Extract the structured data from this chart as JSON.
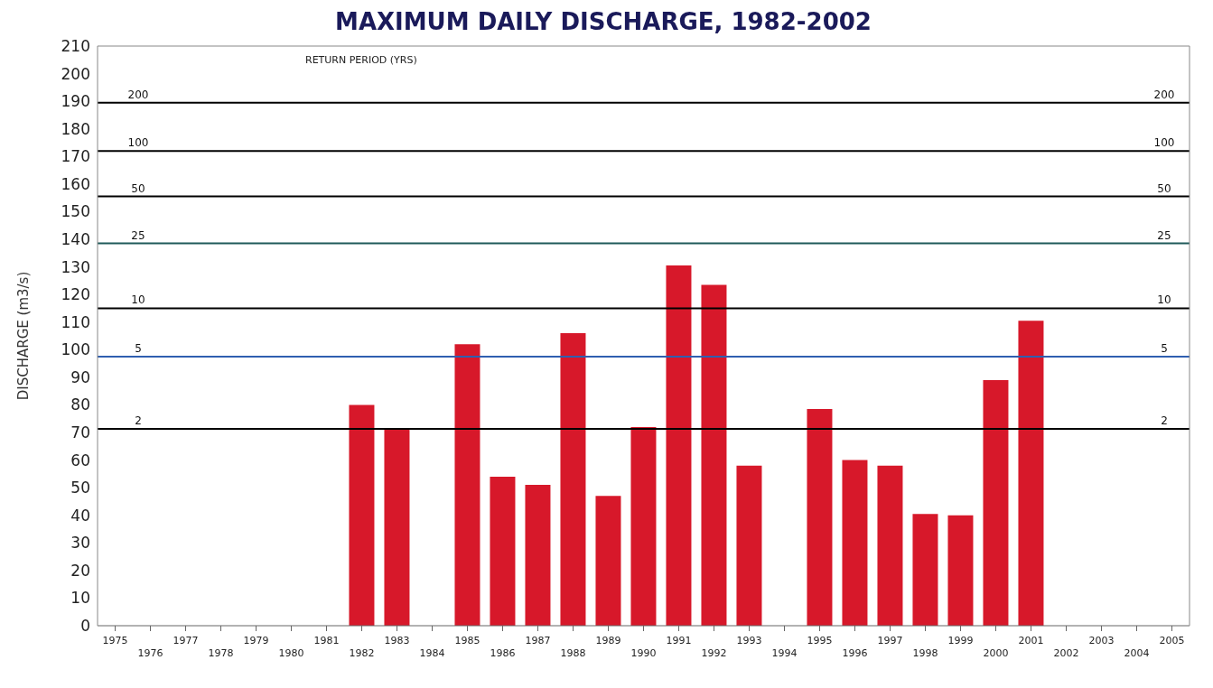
{
  "chart_data": {
    "type": "bar",
    "title": "MAXIMUM DAILY DISCHARGE, 1982-2002",
    "ylabel": "DISCHARGE (m3/s)",
    "annotations": [
      "RETURN PERIOD (YRS)",
      {
        "text": "200",
        "y": 189.5
      },
      {
        "text": "100",
        "y": 172
      },
      {
        "text": "50",
        "y": 155.5
      },
      {
        "text": "25",
        "y": 138.5
      },
      {
        "text": "10",
        "y": 115
      },
      {
        "text": "5",
        "y": 97.5
      },
      {
        "text": "2",
        "y": 71.3
      }
    ],
    "categories": [
      "1975",
      "1976",
      "1977",
      "1978",
      "1979",
      "1980",
      "1981",
      "1982",
      "1983",
      "1984",
      "1985",
      "1986",
      "1987",
      "1988",
      "1989",
      "1990",
      "1991",
      "1992",
      "1993",
      "1994",
      "1995",
      "1996",
      "1997",
      "1998",
      "1999",
      "2000",
      "2001",
      "2002",
      "2003",
      "2004",
      "2005"
    ],
    "values": [
      null,
      null,
      null,
      null,
      null,
      null,
      null,
      80,
      71.5,
      null,
      102,
      54,
      51,
      106,
      47,
      72,
      130.5,
      123.5,
      58,
      null,
      78.5,
      60,
      58,
      40.5,
      40,
      89,
      110.5,
      null,
      null,
      null,
      null
    ],
    "color": "#d7182a",
    "ylim": [
      0,
      210
    ],
    "yticks": [
      0,
      10,
      20,
      30,
      40,
      50,
      60,
      70,
      80,
      90,
      100,
      110,
      120,
      130,
      140,
      150,
      160,
      170,
      180,
      190,
      200,
      210
    ],
    "ref_lines": [
      {
        "axis": "y",
        "value": 189.5,
        "color": "#000000"
      },
      {
        "axis": "y",
        "value": 172,
        "color": "#000000"
      },
      {
        "axis": "y",
        "value": 155.5,
        "color": "#000000"
      },
      {
        "axis": "y",
        "value": 138.5,
        "color": "#1f5a5a"
      },
      {
        "axis": "y",
        "value": 115,
        "color": "#000000"
      },
      {
        "axis": "y",
        "value": 97.5,
        "color": "#2f5fb0"
      },
      {
        "axis": "y",
        "value": 71.3,
        "color": "#000000"
      }
    ],
    "grid": false,
    "legend": false
  }
}
